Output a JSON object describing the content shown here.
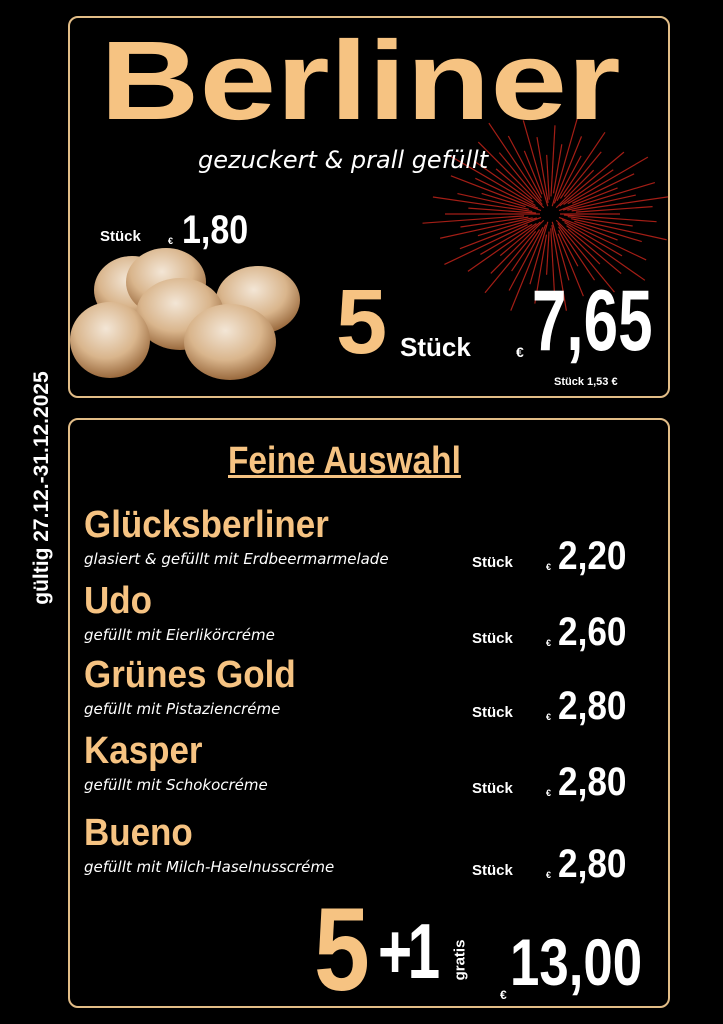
{
  "validity": "gültig 27.12.-31.12.2025",
  "top": {
    "title": "Berliner",
    "subtitle": "gezuckert & prall gefüllt",
    "single": {
      "unit": "Stück",
      "currency": "€",
      "price": "1,80"
    },
    "bundle": {
      "quantity": "5",
      "unit": "Stück",
      "currency": "€",
      "price": "7,65",
      "per_piece": "Stück 1,53 €"
    }
  },
  "bottom": {
    "heading": "Feine Auswahl",
    "items": [
      {
        "name": "Glücksberliner",
        "description": "glasiert & gefüllt mit Erdbeermarmelade",
        "unit": "Stück",
        "currency": "€",
        "price": "2,20"
      },
      {
        "name": "Udo",
        "description": "gefüllt mit Eierlikörcréme",
        "unit": "Stück",
        "currency": "€",
        "price": "2,60"
      },
      {
        "name": "Grünes Gold",
        "description": "gefüllt mit Pistaziencréme",
        "unit": "Stück",
        "currency": "€",
        "price": "2,80"
      },
      {
        "name": "Kasper",
        "description": "gefüllt mit Schokocréme",
        "unit": "Stück",
        "currency": "€",
        "price": "2,80"
      },
      {
        "name": "Bueno",
        "description": "gefüllt mit Milch-Haselnusscréme",
        "unit": "Stück",
        "currency": "€",
        "price": "2,80"
      }
    ],
    "offer": {
      "quantity": "5",
      "bonus": "+1",
      "bonus_label": "gratis",
      "currency": "€",
      "price": "13,00"
    }
  }
}
